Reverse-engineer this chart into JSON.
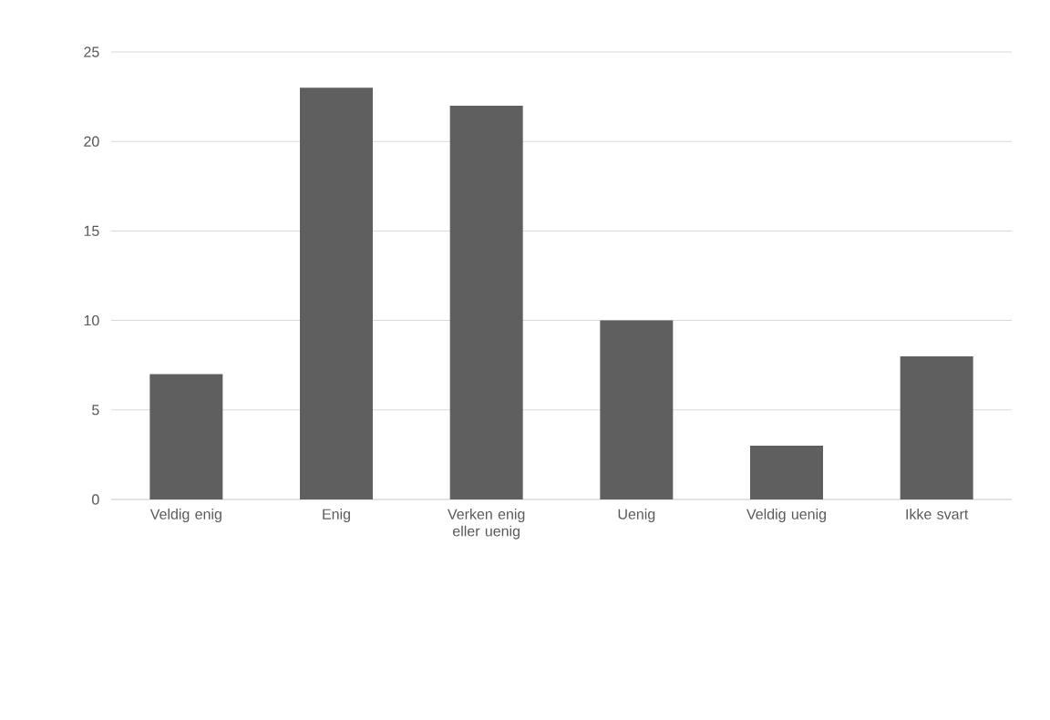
{
  "chart_data": {
    "type": "bar",
    "categories": [
      "Veldig enig",
      "Enig",
      "Verken enig eller uenig",
      "Uenig",
      "Veldig uenig",
      "Ikke svart"
    ],
    "values": [
      7,
      23,
      22,
      10,
      3,
      8
    ],
    "color": "#5f5f5f",
    "ylim": [
      0,
      25
    ],
    "yticks": [
      0,
      5,
      10,
      15,
      20,
      25
    ],
    "grid": "y"
  }
}
